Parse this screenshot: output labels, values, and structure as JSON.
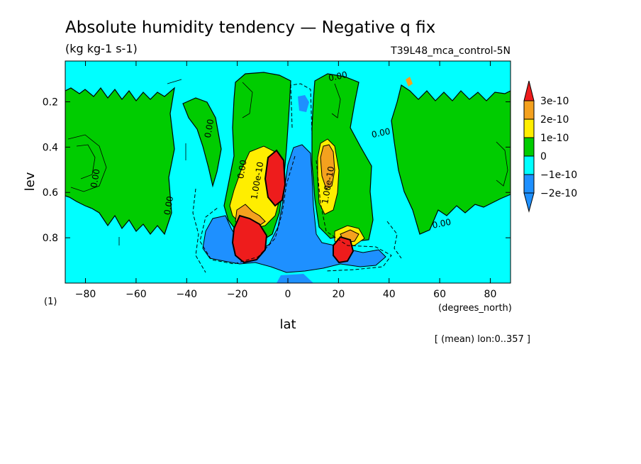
{
  "chart_data": {
    "type": "heatmap",
    "title": "Absolute humidity tendency — Negative q fix",
    "subtitle": "(kg kg-1 s-1)",
    "run_label": "T39L48_mca_control-5N",
    "xlabel": "lat",
    "x_unit": "(degrees_north)",
    "ylabel": "lev",
    "y_unit": "(1)",
    "mean_note": "[ (mean) lon:0..357 ]",
    "xlim": [
      -88,
      88
    ],
    "ylim": [
      1.0,
      0.02
    ],
    "x_ticks": [
      -80,
      -60,
      -40,
      -20,
      0,
      20,
      40,
      60,
      80
    ],
    "x_tick_labels": [
      "−80",
      "−60",
      "−40",
      "−20",
      "0",
      "20",
      "40",
      "60",
      "80"
    ],
    "y_ticks": [
      0.2,
      0.4,
      0.6,
      0.8
    ],
    "y_tick_labels": [
      "0.2",
      "0.4",
      "0.6",
      "0.8"
    ],
    "colorbar": {
      "levels": [
        {
          "label": "3e-10",
          "color": "#ee1c1c",
          "value": 3e-10
        },
        {
          "label": "2e-10",
          "color": "#f4a11e",
          "value": 2e-10
        },
        {
          "label": "1e-10",
          "color": "#ffee00",
          "value": 1e-10
        },
        {
          "label": "0",
          "color": "#00cc00",
          "value": 0
        },
        {
          "label": "−1e-10",
          "color": "#00ffff",
          "value": -1e-10
        },
        {
          "label": "−2e-10",
          "color": "#1e90ff",
          "value": -2e-10
        }
      ]
    },
    "contour_labels": [
      {
        "text": "0.00",
        "lat": 20,
        "lev": 0.1
      },
      {
        "text": "0.00",
        "lat": -30,
        "lev": 0.32
      },
      {
        "text": "0.00",
        "lat": -17,
        "lev": 0.5
      },
      {
        "text": "0.00",
        "lat": -75,
        "lev": 0.54
      },
      {
        "text": "0.00",
        "lat": -46,
        "lev": 0.66
      },
      {
        "text": "0.00",
        "lat": 37,
        "lev": 0.35
      },
      {
        "text": "0.00",
        "lat": 61,
        "lev": 0.75
      },
      {
        "text": "1.00e-10",
        "lat": -11,
        "lev": 0.55
      },
      {
        "text": "1.00e-10",
        "lat": 17,
        "lev": 0.57
      }
    ],
    "grid": false
  }
}
